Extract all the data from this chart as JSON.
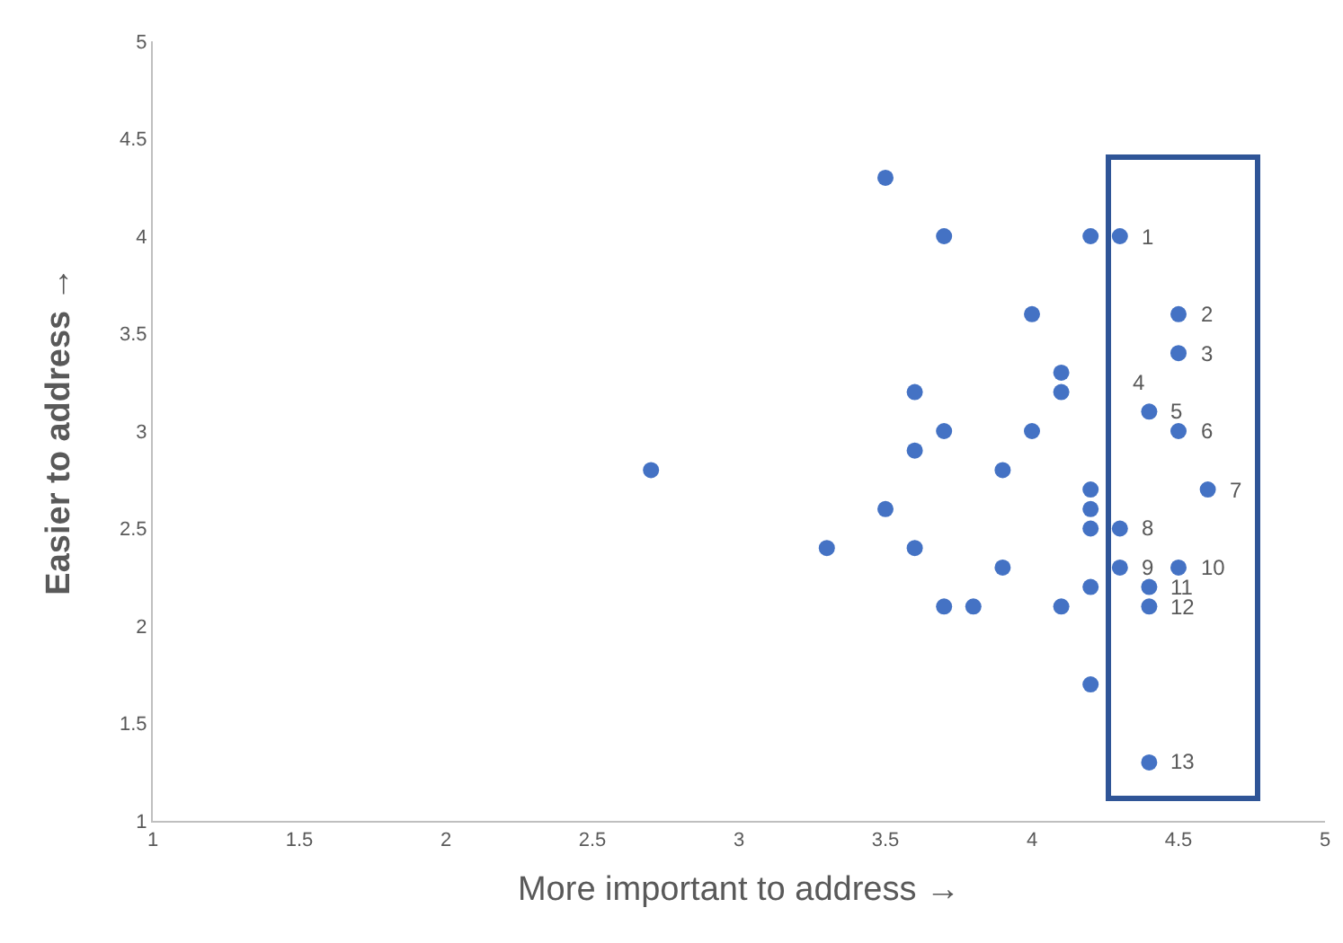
{
  "chart_data": {
    "type": "scatter",
    "xlabel": "More important to address →",
    "ylabel": "Easier to address →",
    "x": [
      3.5,
      3.7,
      4.2,
      4.3,
      4.0,
      4.5,
      4.5,
      4.1,
      3.6,
      4.1,
      4.4,
      3.7,
      4.0,
      4.5,
      3.6,
      3.9,
      2.7,
      4.2,
      4.6,
      4.2,
      3.5,
      4.2,
      4.3,
      3.3,
      3.6,
      3.9,
      4.3,
      4.5,
      4.2,
      4.4,
      3.7,
      3.8,
      4.1,
      4.4,
      4.2,
      4.4
    ],
    "series": [
      {
        "color": "#4472c4",
        "values": [
          4.3,
          4.0,
          4.0,
          4.0,
          3.6,
          3.6,
          3.4,
          3.3,
          3.2,
          3.2,
          3.1,
          3.0,
          3.0,
          3.0,
          2.9,
          2.8,
          2.8,
          2.7,
          2.7,
          2.6,
          2.6,
          2.5,
          2.5,
          2.4,
          2.4,
          2.3,
          2.3,
          2.3,
          2.2,
          2.2,
          2.1,
          2.1,
          2.1,
          2.1,
          1.7,
          1.3
        ]
      }
    ],
    "marker": "circle",
    "xlim": [
      1,
      5
    ],
    "xticks": [
      1,
      1.5,
      2,
      2.5,
      3,
      3.5,
      4,
      4.5,
      5
    ],
    "ylim": [
      1,
      5
    ],
    "yticks": [
      1,
      1.5,
      2,
      2.5,
      3,
      3.5,
      4,
      4.5,
      5
    ],
    "grid": false,
    "legend": false,
    "annotations": [
      {
        "text": "1",
        "x": 4.3,
        "y": 4.0
      },
      {
        "text": "2",
        "x": 4.5,
        "y": 3.6
      },
      {
        "text": "3",
        "x": 4.5,
        "y": 3.4
      },
      {
        "text": "4",
        "x": 4.4,
        "y": 3.1
      },
      {
        "text": "5",
        "x": 4.4,
        "y": 3.1
      },
      {
        "text": "6",
        "x": 4.5,
        "y": 3.0
      },
      {
        "text": "7",
        "x": 4.6,
        "y": 2.7
      },
      {
        "text": "8",
        "x": 4.3,
        "y": 2.5
      },
      {
        "text": "9",
        "x": 4.3,
        "y": 2.3
      },
      {
        "text": "10",
        "x": 4.5,
        "y": 2.3
      },
      {
        "text": "11",
        "x": 4.4,
        "y": 2.2
      },
      {
        "text": "12",
        "x": 4.4,
        "y": 2.1
      },
      {
        "text": "13",
        "x": 4.4,
        "y": 1.3
      }
    ]
  }
}
